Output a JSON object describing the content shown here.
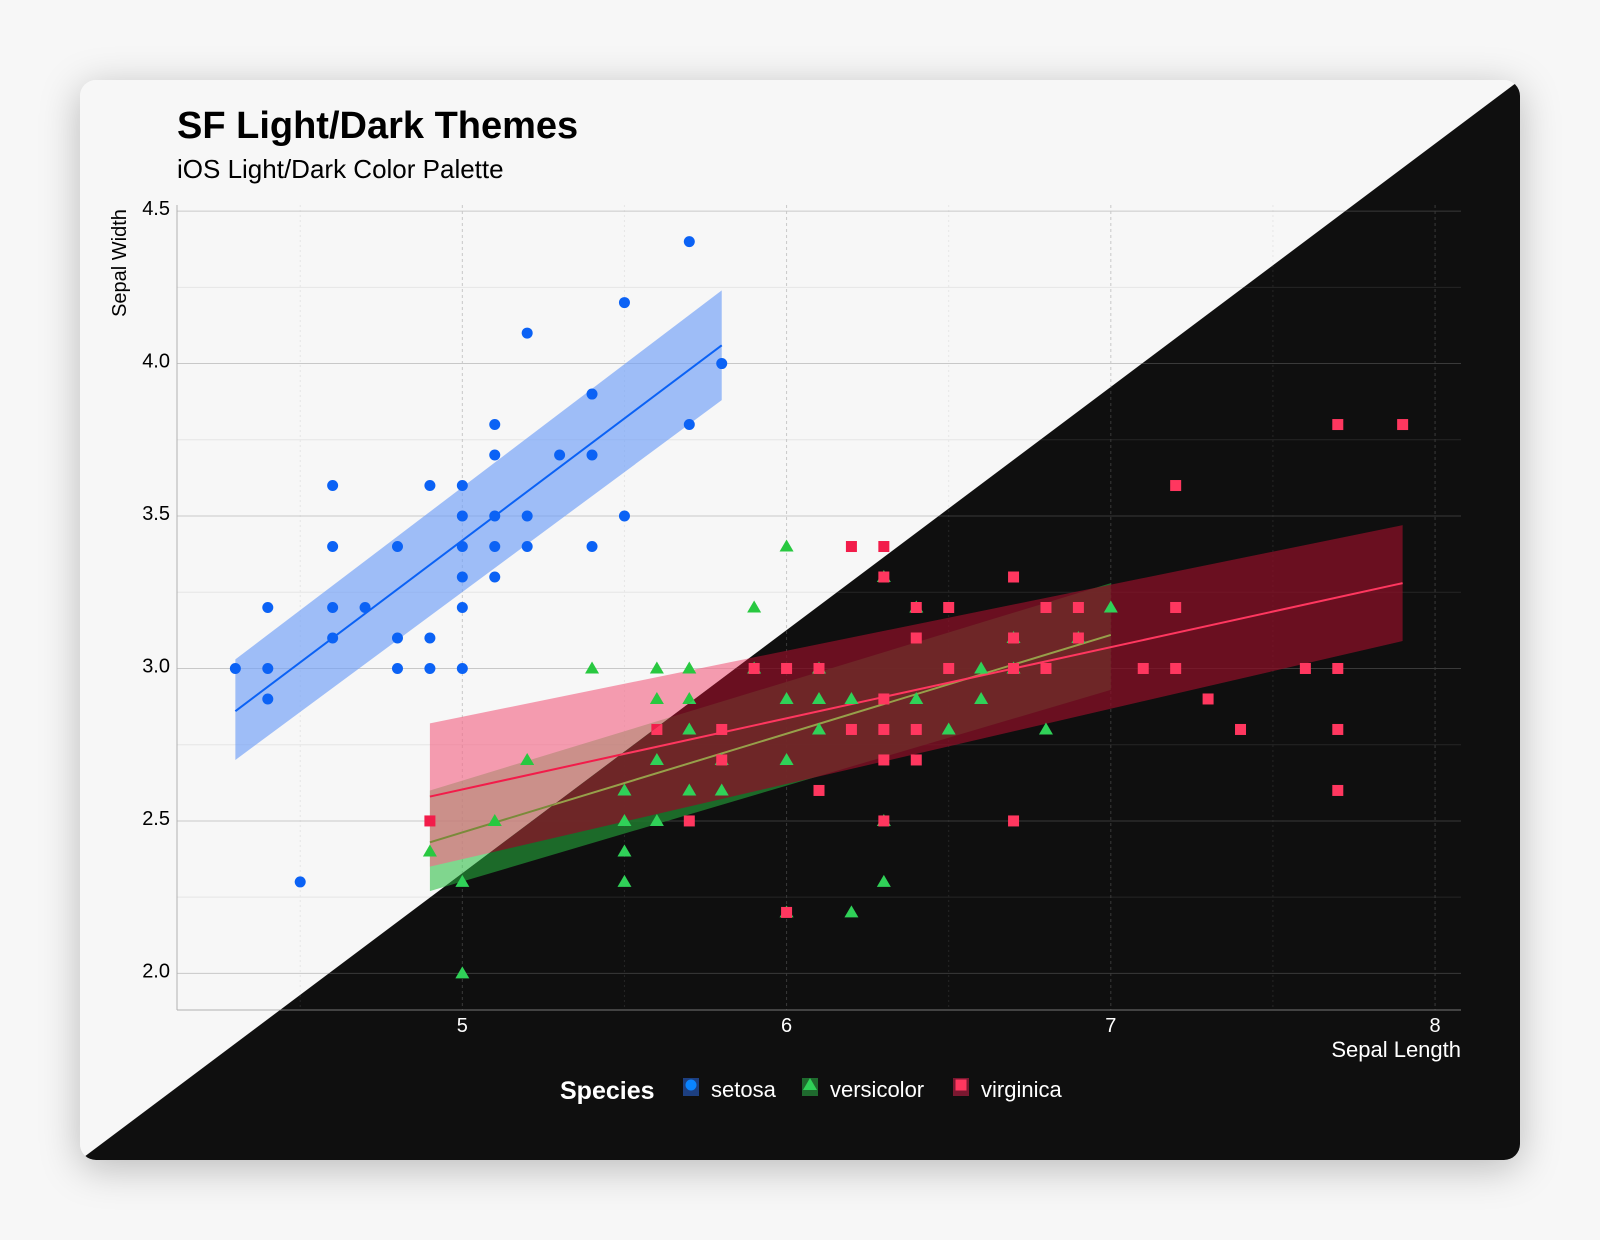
{
  "chart_data": {
    "type": "scatter",
    "title": "SF Light/Dark Themes",
    "subtitle": "iOS Light/Dark Color Palette",
    "xlabel": "Sepal Length",
    "ylabel": "Sepal Width",
    "xlim": [
      4.12,
      8.08
    ],
    "ylim": [
      1.88,
      4.52
    ],
    "xticks": [
      5,
      6,
      7,
      8
    ],
    "yticks": [
      2.0,
      2.5,
      3.0,
      3.5,
      4.0,
      4.5
    ],
    "ytick_labels": [
      "2.0",
      "2.5",
      "3.0",
      "3.5",
      "4.0",
      "4.5"
    ],
    "grid": true,
    "legend": {
      "title": "Species",
      "placement": "bottom-center",
      "entries": [
        "setosa",
        "versicolor",
        "virginica"
      ]
    },
    "series": [
      {
        "name": "setosa",
        "marker": "circle",
        "light_color": "#0B62F5",
        "dark_color": "#0A84FF",
        "points": [
          [
            4.3,
            3.0
          ],
          [
            4.4,
            3.2
          ],
          [
            4.4,
            3.0
          ],
          [
            4.4,
            2.9
          ],
          [
            4.5,
            2.3
          ],
          [
            4.6,
            3.6
          ],
          [
            4.6,
            3.4
          ],
          [
            4.6,
            3.2
          ],
          [
            4.6,
            3.1
          ],
          [
            4.7,
            3.2
          ],
          [
            4.8,
            3.4
          ],
          [
            4.8,
            3.1
          ],
          [
            4.8,
            3.0
          ],
          [
            4.9,
            3.6
          ],
          [
            4.9,
            3.1
          ],
          [
            4.9,
            3.0
          ],
          [
            5.0,
            3.6
          ],
          [
            5.0,
            3.5
          ],
          [
            5.0,
            3.4
          ],
          [
            5.0,
            3.3
          ],
          [
            5.0,
            3.2
          ],
          [
            5.0,
            3.0
          ],
          [
            5.1,
            3.8
          ],
          [
            5.1,
            3.7
          ],
          [
            5.1,
            3.5
          ],
          [
            5.1,
            3.4
          ],
          [
            5.1,
            3.3
          ],
          [
            5.2,
            4.1
          ],
          [
            5.2,
            3.5
          ],
          [
            5.2,
            3.4
          ],
          [
            5.3,
            3.7
          ],
          [
            5.4,
            3.9
          ],
          [
            5.4,
            3.7
          ],
          [
            5.4,
            3.4
          ],
          [
            5.5,
            4.2
          ],
          [
            5.5,
            3.5
          ],
          [
            5.7,
            4.4
          ],
          [
            5.7,
            3.8
          ],
          [
            5.8,
            4.0
          ]
        ],
        "fit": {
          "x": [
            4.3,
            5.8
          ],
          "y": [
            2.86,
            4.06
          ],
          "ci_lower": [
            2.7,
            3.88
          ],
          "ci_upper": [
            3.03,
            4.24
          ]
        }
      },
      {
        "name": "versicolor",
        "marker": "triangle",
        "light_color": "#28C840",
        "dark_color": "#30D158",
        "points": [
          [
            4.9,
            2.4
          ],
          [
            5.0,
            2.3
          ],
          [
            5.0,
            2.0
          ],
          [
            5.1,
            2.5
          ],
          [
            5.2,
            2.7
          ],
          [
            5.4,
            3.0
          ],
          [
            5.5,
            2.6
          ],
          [
            5.5,
            2.5
          ],
          [
            5.5,
            2.4
          ],
          [
            5.5,
            2.3
          ],
          [
            5.6,
            3.0
          ],
          [
            5.6,
            2.9
          ],
          [
            5.6,
            2.7
          ],
          [
            5.6,
            2.5
          ],
          [
            5.7,
            3.0
          ],
          [
            5.7,
            2.9
          ],
          [
            5.7,
            2.8
          ],
          [
            5.7,
            2.6
          ],
          [
            5.8,
            2.7
          ],
          [
            5.8,
            2.6
          ],
          [
            5.9,
            3.2
          ],
          [
            5.9,
            3.0
          ],
          [
            6.0,
            3.4
          ],
          [
            6.0,
            2.9
          ],
          [
            6.0,
            2.7
          ],
          [
            6.0,
            2.2
          ],
          [
            6.1,
            3.0
          ],
          [
            6.1,
            2.9
          ],
          [
            6.1,
            2.8
          ],
          [
            6.2,
            2.9
          ],
          [
            6.2,
            2.2
          ],
          [
            6.3,
            3.3
          ],
          [
            6.3,
            2.5
          ],
          [
            6.3,
            2.3
          ],
          [
            6.4,
            3.2
          ],
          [
            6.4,
            2.9
          ],
          [
            6.5,
            2.8
          ],
          [
            6.6,
            3.0
          ],
          [
            6.6,
            2.9
          ],
          [
            6.7,
            3.1
          ],
          [
            6.7,
            3.0
          ],
          [
            6.8,
            2.8
          ],
          [
            6.9,
            3.1
          ],
          [
            7.0,
            3.2
          ]
        ],
        "fit": {
          "x": [
            4.9,
            7.0
          ],
          "y": [
            2.43,
            3.11
          ],
          "ci_lower": [
            2.27,
            2.93
          ],
          "ci_upper": [
            2.6,
            3.28
          ]
        }
      },
      {
        "name": "virginica",
        "marker": "square",
        "light_color": "#F21C4A",
        "dark_color": "#FF375F",
        "points": [
          [
            4.9,
            2.5
          ],
          [
            5.6,
            2.8
          ],
          [
            5.7,
            2.5
          ],
          [
            5.8,
            2.8
          ],
          [
            5.8,
            2.7
          ],
          [
            5.9,
            3.0
          ],
          [
            6.0,
            3.0
          ],
          [
            6.0,
            2.2
          ],
          [
            6.1,
            3.0
          ],
          [
            6.1,
            2.6
          ],
          [
            6.2,
            3.4
          ],
          [
            6.2,
            2.8
          ],
          [
            6.3,
            3.4
          ],
          [
            6.3,
            3.3
          ],
          [
            6.3,
            2.9
          ],
          [
            6.3,
            2.8
          ],
          [
            6.3,
            2.7
          ],
          [
            6.3,
            2.5
          ],
          [
            6.4,
            3.2
          ],
          [
            6.4,
            3.1
          ],
          [
            6.4,
            2.8
          ],
          [
            6.4,
            2.7
          ],
          [
            6.5,
            3.2
          ],
          [
            6.5,
            3.0
          ],
          [
            6.7,
            3.3
          ],
          [
            6.7,
            3.1
          ],
          [
            6.7,
            3.0
          ],
          [
            6.7,
            2.5
          ],
          [
            6.8,
            3.2
          ],
          [
            6.8,
            3.0
          ],
          [
            6.9,
            3.2
          ],
          [
            6.9,
            3.1
          ],
          [
            7.1,
            3.0
          ],
          [
            7.2,
            3.6
          ],
          [
            7.2,
            3.2
          ],
          [
            7.2,
            3.0
          ],
          [
            7.3,
            2.9
          ],
          [
            7.4,
            2.8
          ],
          [
            7.6,
            3.0
          ],
          [
            7.7,
            3.8
          ],
          [
            7.7,
            3.0
          ],
          [
            7.7,
            2.8
          ],
          [
            7.7,
            2.6
          ],
          [
            7.9,
            3.8
          ]
        ],
        "fit": {
          "x": [
            4.9,
            7.9
          ],
          "y": [
            2.58,
            3.28
          ],
          "ci_lower": [
            2.35,
            3.09
          ],
          "ci_upper": [
            2.82,
            3.47
          ]
        }
      }
    ]
  }
}
